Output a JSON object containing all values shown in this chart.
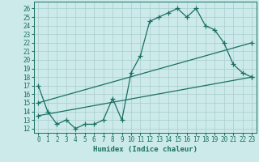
{
  "title": "",
  "xlabel": "Humidex (Indice chaleur)",
  "bg_color": "#cceaea",
  "grid_color": "#aacccc",
  "line_color": "#1a7060",
  "xlim": [
    -0.5,
    23.5
  ],
  "ylim": [
    11.5,
    26.8
  ],
  "xticks": [
    0,
    1,
    2,
    3,
    4,
    5,
    6,
    7,
    8,
    9,
    10,
    11,
    12,
    13,
    14,
    15,
    16,
    17,
    18,
    19,
    20,
    21,
    22,
    23
  ],
  "yticks": [
    12,
    13,
    14,
    15,
    16,
    17,
    18,
    19,
    20,
    21,
    22,
    23,
    24,
    25,
    26
  ],
  "line1_x": [
    0,
    1,
    2,
    3,
    4,
    5,
    6,
    7,
    8,
    9,
    10,
    11,
    12,
    13,
    14,
    15,
    16,
    17,
    18,
    19,
    20,
    21,
    22,
    23
  ],
  "line1_y": [
    17,
    14,
    12.5,
    13,
    12,
    12.5,
    12.5,
    13,
    15.5,
    13,
    18.5,
    20.5,
    24.5,
    25,
    25.5,
    26,
    25,
    26,
    24,
    23.5,
    22,
    19.5,
    18.5,
    18
  ],
  "line2_x": [
    0,
    23
  ],
  "line2_y": [
    13.5,
    18
  ],
  "line3_x": [
    0,
    23
  ],
  "line3_y": [
    15,
    22
  ],
  "marker": "+",
  "markersize": 4,
  "linewidth": 0.9,
  "tick_labelsize": 5.5,
  "xlabel_fontsize": 6.5
}
